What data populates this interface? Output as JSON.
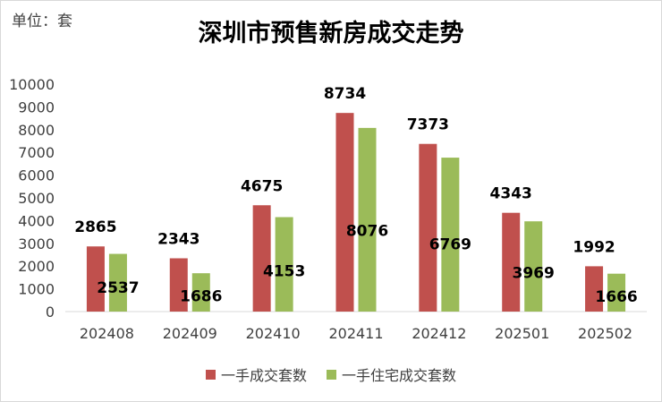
{
  "unit_label": "单位：套",
  "chart_data": {
    "type": "bar",
    "title": "深圳市预售新房成交走势",
    "categories": [
      "202408",
      "202409",
      "202410",
      "202411",
      "202412",
      "202501",
      "202502"
    ],
    "series": [
      {
        "name": "一手成交套数",
        "color": "#c0504d",
        "values": [
          2865,
          2343,
          4675,
          8734,
          7373,
          4343,
          1992
        ]
      },
      {
        "name": "一手住宅成交套数",
        "color": "#9bbb59",
        "values": [
          2537,
          1686,
          4153,
          8076,
          6769,
          3969,
          1666
        ]
      }
    ],
    "ylim": [
      0,
      10000
    ],
    "yticks": [
      0,
      1000,
      2000,
      3000,
      4000,
      5000,
      6000,
      7000,
      8000,
      9000,
      10000
    ],
    "grid": false,
    "legend": "bottom"
  }
}
